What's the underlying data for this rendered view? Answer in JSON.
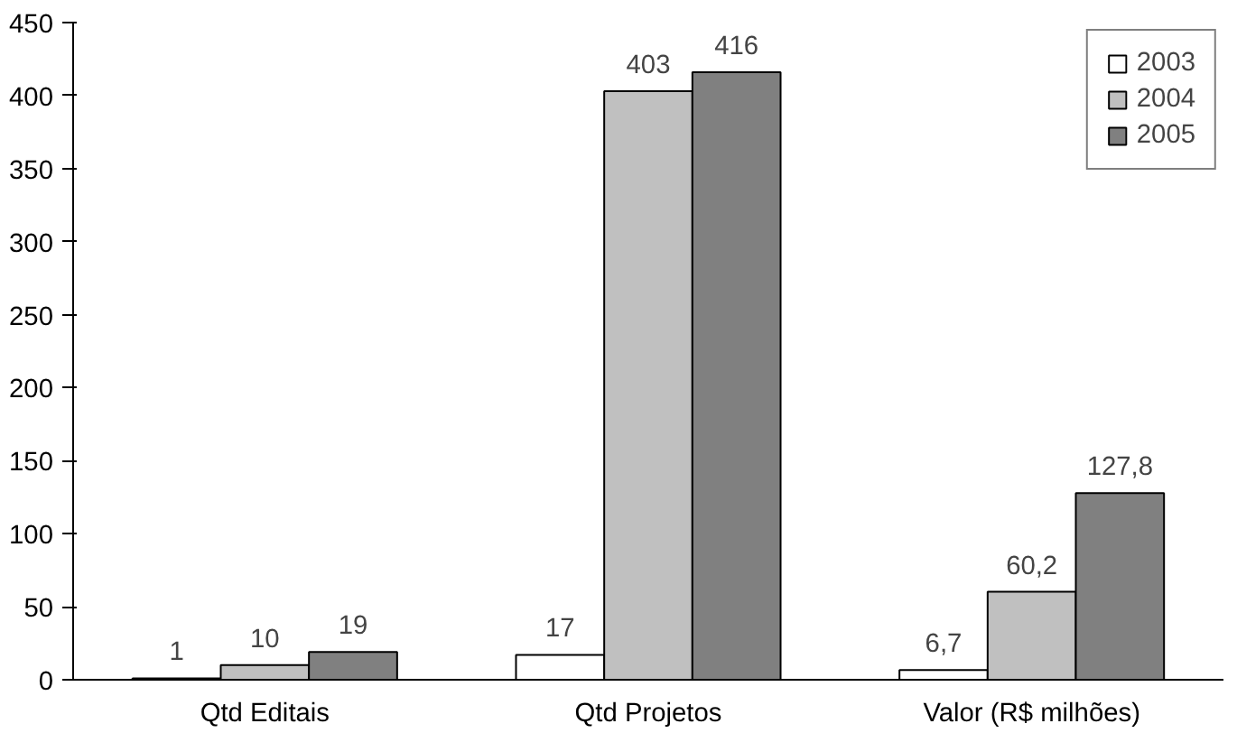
{
  "chart_data": {
    "type": "bar",
    "categories": [
      "Qtd Editais",
      "Qtd Projetos",
      "Valor (R$ milhões)"
    ],
    "series": [
      {
        "name": "2003",
        "color": "#ffffff",
        "values": [
          1,
          17,
          6.7
        ],
        "value_labels": [
          "1",
          "17",
          "6,7"
        ]
      },
      {
        "name": "2004",
        "color": "#c0c0c0",
        "values": [
          10,
          403,
          60.2
        ],
        "value_labels": [
          "10",
          "403",
          "60,2"
        ]
      },
      {
        "name": "2005",
        "color": "#808080",
        "values": [
          19,
          416,
          127.8
        ],
        "value_labels": [
          "19",
          "416",
          "127,8"
        ]
      }
    ],
    "ylim": [
      0,
      450
    ],
    "yticks": [
      0,
      50,
      100,
      150,
      200,
      250,
      300,
      350,
      400,
      450
    ],
    "grid": false,
    "legend": "top right"
  }
}
